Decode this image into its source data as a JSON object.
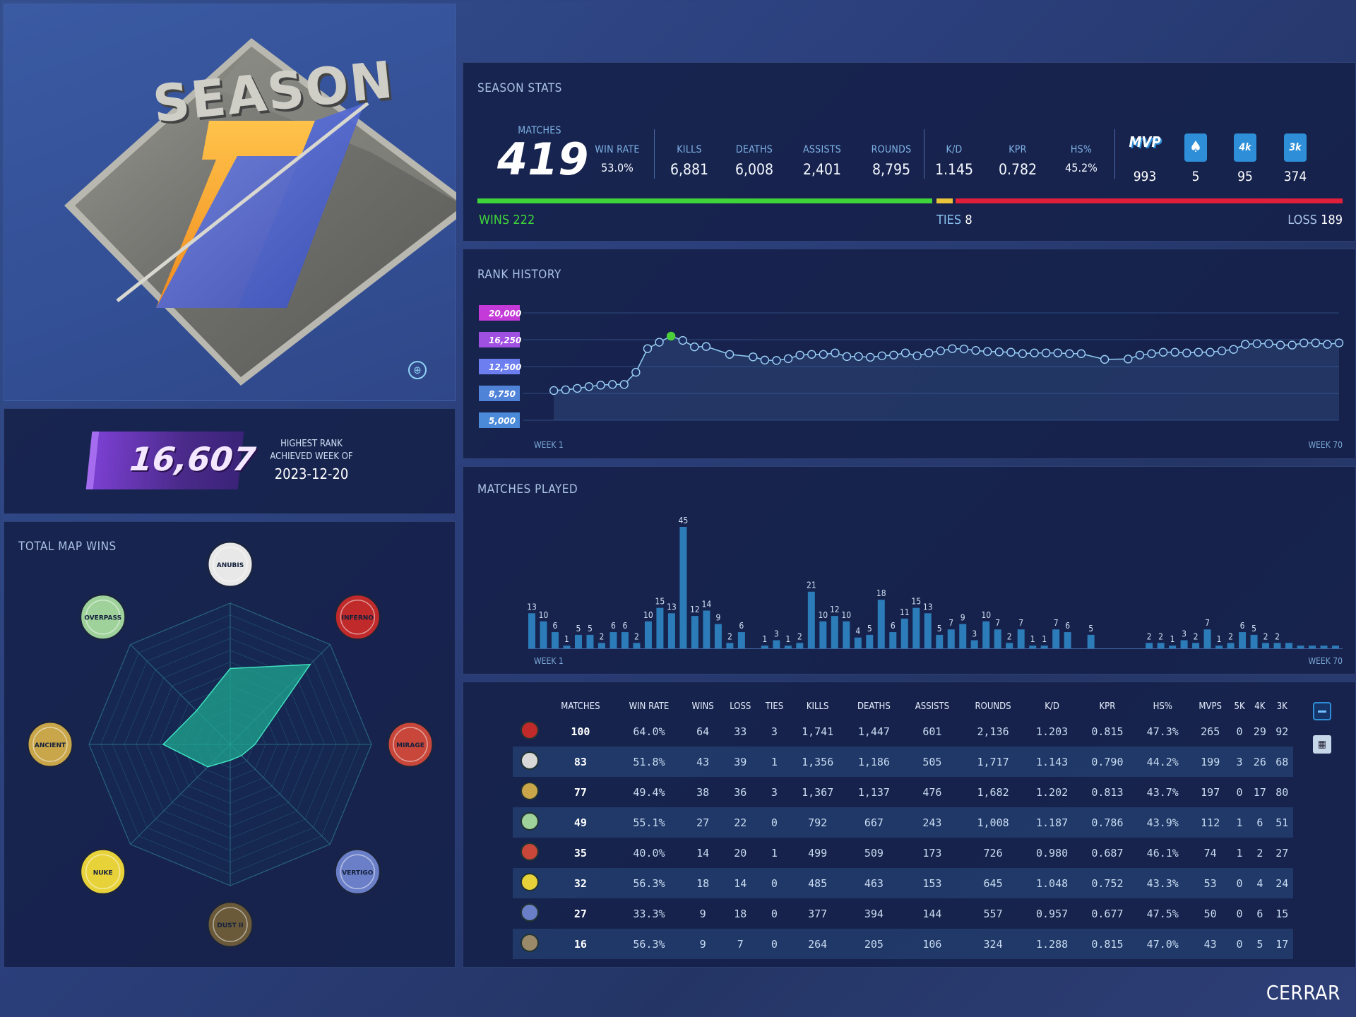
{
  "season": {
    "word": "SEASON",
    "number": "1"
  },
  "rank_card": {
    "value": "16,607",
    "label_line1": "HIGHEST RANK",
    "label_line2": "ACHIEVED WEEK OF",
    "date": "2023-12-20"
  },
  "map_wins": {
    "title": "TOTAL MAP WINS",
    "maps": [
      "ANUBIS",
      "INFERNO",
      "MIRAGE",
      "VERTIGO",
      "DUST II",
      "NUKE",
      "ANCIENT",
      "OVERPASS"
    ],
    "wins": [
      43,
      64,
      14,
      9,
      9,
      18,
      38,
      27
    ],
    "colors": {
      "area": "#1fa890",
      "grid": "#2a6a86"
    }
  },
  "season_stats": {
    "title": "SEASON STATS",
    "matches": {
      "label": "MATCHES",
      "value": "419"
    },
    "items": [
      {
        "label": "WIN RATE",
        "value": "53.0%"
      },
      {
        "label": "KILLS",
        "value": "6,881"
      },
      {
        "label": "DEATHS",
        "value": "6,008"
      },
      {
        "label": "ASSISTS",
        "value": "2,401"
      },
      {
        "label": "ROUNDS",
        "value": "8,795"
      },
      {
        "label": "K/D",
        "value": "1.145"
      },
      {
        "label": "KPR",
        "value": "0.782"
      },
      {
        "label": "HS%",
        "value": "45.2%"
      }
    ],
    "badges": [
      {
        "label": "MVP",
        "value": "993"
      },
      {
        "label": "ace-icon",
        "value": "5"
      },
      {
        "label": "4k",
        "value": "95"
      },
      {
        "label": "3k",
        "value": "374"
      }
    ],
    "wins": {
      "label": "WINS",
      "value": "222"
    },
    "ties": {
      "label": "TIES",
      "value": "8"
    },
    "loss": {
      "label": "LOSS",
      "value": "189"
    },
    "colors": {
      "win": "#3fd43a",
      "tie": "#e8c43a",
      "loss": "#e0203a"
    }
  },
  "rank_history": {
    "title": "RANK HISTORY",
    "y_ticks": [
      "20,000",
      "16,250",
      "12,500",
      "8,750",
      "5,000"
    ],
    "x_start": "WEEK 1",
    "x_end": "WEEK 70"
  },
  "matches_played": {
    "title": "MATCHES PLAYED",
    "x_start": "WEEK 1",
    "x_end": "WEEK 70"
  },
  "chart_data": [
    {
      "type": "line",
      "title": "RANK HISTORY",
      "ylim": [
        5000,
        20000
      ],
      "y_ticks": [
        20000,
        16250,
        12500,
        8750,
        5000
      ],
      "x_range": [
        1,
        70
      ],
      "series": [
        {
          "x": [
            3,
            4,
            5,
            6,
            7,
            8,
            9,
            10,
            11,
            12,
            13,
            14,
            15,
            16,
            18,
            20,
            21,
            22,
            23,
            24,
            25,
            26,
            27,
            28,
            29,
            30,
            31,
            32,
            33,
            34,
            35,
            36,
            37,
            38,
            39,
            40,
            41,
            42,
            43,
            44,
            45,
            46,
            47,
            48,
            50,
            52,
            53,
            54,
            55,
            56,
            57,
            58,
            59,
            60,
            61,
            62,
            63,
            64,
            65,
            66,
            67,
            68,
            69,
            70
          ],
          "y": [
            9150,
            9250,
            9450,
            9700,
            9900,
            10000,
            10000,
            11700,
            15000,
            15900,
            16750,
            16150,
            15250,
            15300,
            14200,
            13850,
            13400,
            13350,
            13600,
            14100,
            14200,
            14200,
            14400,
            13900,
            13900,
            13800,
            14000,
            14100,
            14400,
            14000,
            14400,
            14700,
            15000,
            14950,
            14750,
            14600,
            14550,
            14500,
            14300,
            14400,
            14400,
            14400,
            14300,
            14300,
            13500,
            13550,
            14100,
            14300,
            14500,
            14500,
            14400,
            14500,
            14500,
            14700,
            14900,
            15600,
            15700,
            15700,
            15500,
            15500,
            15800,
            15800,
            15600,
            15800
          ]
        }
      ]
    },
    {
      "type": "bar",
      "title": "MATCHES PLAYED",
      "x_range": [
        1,
        70
      ],
      "weeks": [
        1,
        2,
        3,
        4,
        5,
        6,
        7,
        8,
        9,
        10,
        11,
        12,
        13,
        14,
        15,
        16,
        17,
        18,
        19,
        21,
        22,
        23,
        24,
        25,
        26,
        27,
        28,
        29,
        30,
        31,
        32,
        33,
        34,
        35,
        36,
        37,
        38,
        39,
        40,
        41,
        42,
        43,
        44,
        45,
        46,
        47,
        49,
        54,
        55,
        56,
        57,
        58,
        59,
        60,
        61,
        62,
        63,
        64,
        65,
        66,
        67,
        68,
        69,
        70
      ],
      "values": [
        13,
        10,
        6,
        1,
        5,
        5,
        2,
        6,
        6,
        2,
        10,
        15,
        13,
        45,
        12,
        14,
        9,
        2,
        6,
        1,
        3,
        1,
        2,
        21,
        10,
        12,
        10,
        4,
        5,
        18,
        6,
        11,
        15,
        13,
        5,
        7,
        9,
        3,
        10,
        7,
        2,
        7,
        1,
        1,
        7,
        6,
        5,
        2,
        2,
        1,
        3,
        2,
        7,
        1,
        2,
        6,
        5,
        2,
        2,
        2,
        1,
        1,
        1,
        1
      ],
      "labels_shown": [
        13,
        10,
        6,
        1,
        5,
        5,
        2,
        6,
        6,
        2,
        10,
        15,
        13,
        45,
        12,
        14,
        9,
        2,
        6,
        1,
        3,
        1,
        2,
        21,
        10,
        12,
        10,
        4,
        5,
        18,
        6,
        11,
        15,
        13,
        5,
        7,
        9,
        3,
        10,
        7,
        2,
        7,
        1,
        1,
        7,
        6,
        5,
        2,
        2,
        1,
        3,
        2,
        7,
        1,
        2,
        6,
        5,
        2,
        2
      ]
    },
    {
      "type": "radar",
      "title": "TOTAL MAP WINS",
      "categories": [
        "ANUBIS",
        "INFERNO",
        "MIRAGE",
        "VERTIGO",
        "DUST II",
        "NUKE",
        "ANCIENT",
        "OVERPASS"
      ],
      "values": [
        43,
        64,
        14,
        9,
        9,
        18,
        38,
        27
      ]
    }
  ],
  "table": {
    "headers": [
      "MATCHES",
      "WIN RATE",
      "WINS",
      "LOSS",
      "TIES",
      "KILLS",
      "DEATHS",
      "ASSISTS",
      "ROUNDS",
      "K/D",
      "KPR",
      "HS%",
      "MVPS",
      "5K",
      "4K",
      "3K"
    ],
    "rows": [
      {
        "map": "inferno",
        "icon_color": "#c02a2a",
        "cells": [
          "100",
          "64.0%",
          "64",
          "33",
          "3",
          "1,741",
          "1,447",
          "601",
          "2,136",
          "1.203",
          "0.815",
          "47.3%",
          "265",
          "0",
          "29",
          "92"
        ]
      },
      {
        "map": "anubis",
        "icon_color": "#d8d8d8",
        "cells": [
          "83",
          "51.8%",
          "43",
          "39",
          "1",
          "1,356",
          "1,186",
          "505",
          "1,717",
          "1.143",
          "0.790",
          "44.2%",
          "199",
          "3",
          "26",
          "68"
        ]
      },
      {
        "map": "ancient",
        "icon_color": "#c9a64a",
        "cells": [
          "77",
          "49.4%",
          "38",
          "36",
          "3",
          "1,367",
          "1,137",
          "476",
          "1,682",
          "1.202",
          "0.813",
          "43.7%",
          "197",
          "0",
          "17",
          "80"
        ]
      },
      {
        "map": "overpass",
        "icon_color": "#9fd29a",
        "cells": [
          "49",
          "55.1%",
          "27",
          "22",
          "0",
          "792",
          "667",
          "243",
          "1,008",
          "1.187",
          "0.786",
          "43.9%",
          "112",
          "1",
          "6",
          "51"
        ]
      },
      {
        "map": "mirage",
        "icon_color": "#c8473a",
        "cells": [
          "35",
          "40.0%",
          "14",
          "20",
          "1",
          "499",
          "509",
          "173",
          "726",
          "0.980",
          "0.687",
          "46.1%",
          "74",
          "1",
          "2",
          "27"
        ]
      },
      {
        "map": "nuke",
        "icon_color": "#e8d23a",
        "cells": [
          "32",
          "56.3%",
          "18",
          "14",
          "0",
          "485",
          "463",
          "153",
          "645",
          "1.048",
          "0.752",
          "43.3%",
          "53",
          "0",
          "4",
          "24"
        ]
      },
      {
        "map": "vertigo",
        "icon_color": "#6a7fc8",
        "cells": [
          "27",
          "33.3%",
          "9",
          "18",
          "0",
          "377",
          "394",
          "144",
          "557",
          "0.957",
          "0.677",
          "47.5%",
          "50",
          "0",
          "6",
          "15"
        ]
      },
      {
        "map": "dust2",
        "icon_color": "#9a8a6a",
        "cells": [
          "16",
          "56.3%",
          "9",
          "7",
          "0",
          "264",
          "205",
          "106",
          "324",
          "1.288",
          "0.815",
          "47.0%",
          "43",
          "0",
          "5",
          "17"
        ]
      }
    ]
  },
  "footer": {
    "close_label": "CERRAR"
  }
}
